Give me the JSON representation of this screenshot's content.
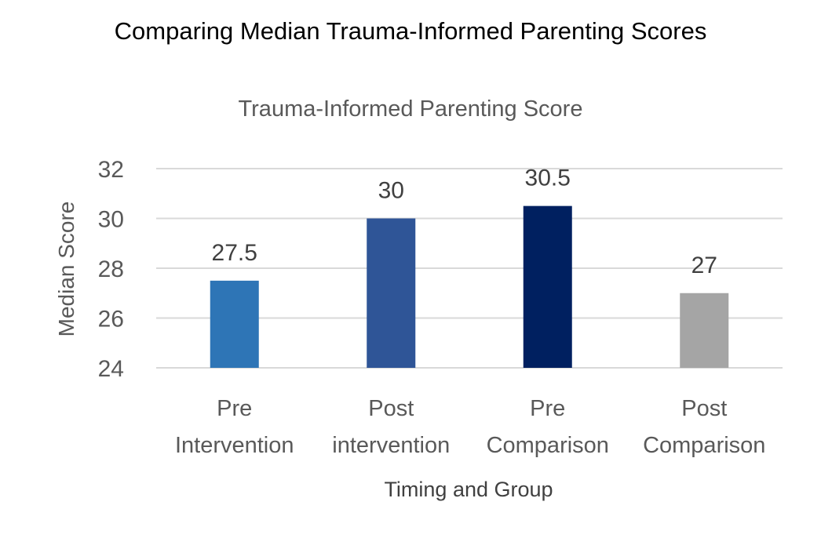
{
  "page_title": "Comparing Median Trauma-Informed Parenting Scores",
  "chart_data": {
    "type": "bar",
    "title": "Trauma-Informed Parenting Score",
    "xlabel": "Timing and Group",
    "ylabel": "Median Score",
    "categories": [
      [
        "Pre",
        "Intervention"
      ],
      [
        "Post",
        "intervention"
      ],
      [
        "Pre",
        "Comparison"
      ],
      [
        "Post",
        "Comparison"
      ]
    ],
    "values": [
      27.5,
      30,
      30.5,
      27
    ],
    "data_labels": [
      "27.5",
      "30",
      "30.5",
      "27"
    ],
    "bar_colors": [
      "#2e75b6",
      "#2f5597",
      "#002060",
      "#a5a5a5"
    ],
    "ylim": [
      24,
      32
    ],
    "yticks": [
      24,
      26,
      28,
      30,
      32
    ],
    "grid": true,
    "legend": "none"
  }
}
